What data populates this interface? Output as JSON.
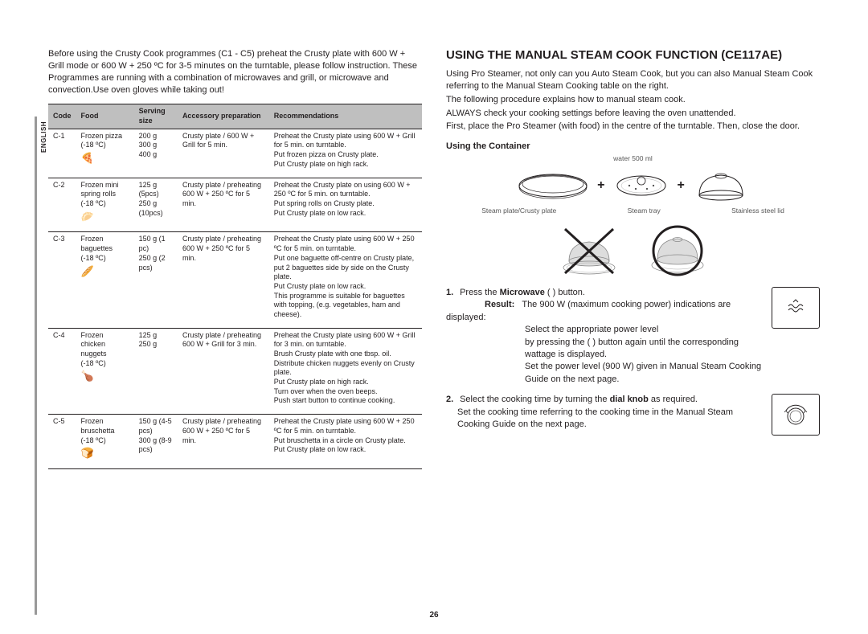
{
  "lang_label": "ENGLISH",
  "intro": "Before using the Crusty Cook programmes (C1 - C5) preheat the Crusty plate with 600 W + Grill mode or 600 W + 250 ºC for 3-5 minutes on the turntable, please follow instruction. These Programmes are running with a combination of microwaves and grill, or microwave and convection.Use oven gloves while taking out!",
  "table": {
    "headers": [
      "Code",
      "Food",
      "Serving size",
      "Accessory preparation",
      "Recommendations"
    ],
    "rows": [
      {
        "code": "C-1",
        "food": "Frozen pizza\n(-18 ºC)",
        "icon": "🍕",
        "serving": "200 g\n300 g\n400 g",
        "accessory": "Crusty plate / 600 W + Grill for 5 min.",
        "recommend": "Preheat the Crusty plate using 600 W + Grill for 5 min. on turntable.\nPut frozen pizza on Crusty plate.\nPut Crusty plate on high rack."
      },
      {
        "code": "C-2",
        "food": "Frozen mini spring rolls\n(-18 ºC)",
        "icon": "🥟",
        "serving": "125 g (5pcs)\n250 g (10pcs)",
        "accessory": "Crusty plate / preheating 600 W + 250 ºC for 5 min.",
        "recommend": "Preheat the Crusty plate on using 600 W + 250 ºC for 5 min. on turntable.\nPut spring rolls on Crusty plate.\nPut Crusty plate on low rack."
      },
      {
        "code": "C-3",
        "food": "Frozen baguettes\n(-18 ºC)",
        "icon": "🥖",
        "serving": "150 g (1 pc)\n250 g (2 pcs)",
        "accessory": "Crusty plate / preheating 600 W + 250 ºC for 5 min.",
        "recommend": "Preheat the Crusty plate using 600 W + 250 ºC for 5 min. on turntable.\nPut one baguette off-centre on Crusty plate, put 2 baguettes side by side on the Crusty plate.\nPut Crusty plate on low rack.\nThis programme is suitable for baguettes with topping, (e.g. vegetables, ham and cheese)."
      },
      {
        "code": "C-4",
        "food": "Frozen chicken nuggets\n(-18 ºC)",
        "icon": "🍗",
        "serving": "125 g\n250 g",
        "accessory": "Crusty plate / preheating 600 W + Grill for 3 min.",
        "recommend": "Preheat the Crusty plate using 600 W + Grill for 3 min. on turntable.\nBrush Crusty plate with one tbsp. oil. Distribute chicken nuggets evenly on Crusty plate.\nPut Crusty plate on high rack.\nTurn over when the oven beeps.\nPush start button to continue cooking."
      },
      {
        "code": "C-5",
        "food": "Frozen bruschetta\n(-18 ºC)",
        "icon": "🍞",
        "serving": "150 g (4-5 pcs)\n300 g (8-9 pcs)",
        "accessory": "Crusty plate / preheating 600 W + 250 ºC for 5 min.",
        "recommend": "Preheat the Crusty plate using 600 W + 250 ºC for 5 min. on turntable.\nPut bruschetta in a circle on Crusty plate.\nPut Crusty plate on low rack."
      }
    ]
  },
  "right": {
    "heading": "USING THE MANUAL STEAM COOK FUNCTION (CE117AE)",
    "p1": "Using Pro Steamer, not only can you Auto Steam Cook, but you can also Manual Steam Cook referring to the Manual Steam Cooking table on the right.",
    "p2": "The following procedure explains how to manual steam cook.",
    "p3": "ALWAYS check your cooking settings before leaving the oven unattended.",
    "p4": "First, place the Pro Steamer (with food) in the centre of the turntable. Then, close the door.",
    "using_container": "Using the Container",
    "water_label": "water 500 ml",
    "labels": [
      "Steam plate/Crusty plate",
      "Steam tray",
      "Stainless steel lid"
    ],
    "step1_a": "Press the ",
    "step1_bold": "Microwave",
    "step1_b": " ( ) button.",
    "result_label": "Result:",
    "step1_r1": "The 900 W (maximum cooking power) indications are displayed:",
    "step1_r2": "Select the appropriate power level",
    "step1_r3": "by pressing the ( ) button again until the corresponding wattage is displayed.",
    "step1_r4": "Set the power level (900 W) given in Manual Steam Cooking Guide on the next page.",
    "step2_a": "Select the cooking time by turning the ",
    "step2_bold": "dial knob",
    "step2_b": " as required.",
    "step2_c": "Set the cooking time referring to the cooking time in the Manual Steam Cooking Guide on the next page."
  },
  "page_number": "26"
}
